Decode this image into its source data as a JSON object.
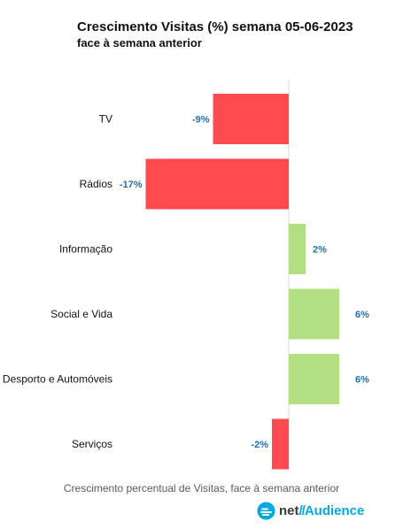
{
  "chart_data": {
    "type": "bar",
    "orientation": "horizontal",
    "title": "Crescimento Visitas (%) semana 05-06-2023",
    "subtitle": "face à semana anterior",
    "categories": [
      "TV",
      "Rádios",
      "Informação",
      "Social e Vida",
      "Desporto e Automóveis",
      "Serviços"
    ],
    "values": [
      -9,
      -17,
      2,
      6,
      6,
      -2
    ],
    "value_labels": [
      "-9%",
      "-17%",
      "2%",
      "6%",
      "6%",
      "-2%"
    ],
    "xlim": [
      -17,
      11
    ],
    "colors": {
      "negative": "#ff4b4f",
      "positive": "#b3df83",
      "label": "#1f6fb4",
      "axis": "#d9d9d9"
    }
  },
  "caption": "Crescimento percentual de Visitas, face à semana anterior",
  "brand": {
    "net": "net",
    "separator": "//",
    "audience": "Audience"
  }
}
